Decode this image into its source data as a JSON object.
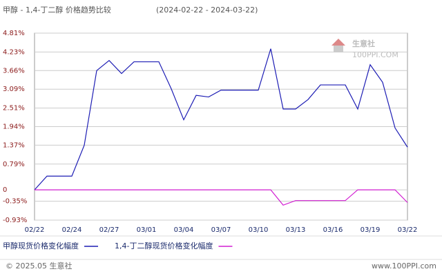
{
  "chart_data": {
    "type": "line",
    "title": "甲醇 - 1,4-丁二醇 价格趋势比较",
    "subtitle": "(2024-02-22 - 2024-03-22)",
    "categories": [
      "02/22",
      null,
      null,
      "02/24",
      null,
      null,
      "02/27",
      null,
      null,
      "03/01",
      null,
      null,
      "03/04",
      null,
      null,
      "03/07",
      null,
      null,
      "03/10",
      null,
      null,
      "03/13",
      null,
      null,
      "03/16",
      null,
      null,
      "03/19",
      null,
      null,
      "03/22"
    ],
    "series": [
      {
        "name": "甲醇现货价格变化幅度",
        "color": "#1c1cb4",
        "values": [
          0,
          0.42,
          0.42,
          0.42,
          1.37,
          3.66,
          3.97,
          3.57,
          3.93,
          3.93,
          3.93,
          3.1,
          2.15,
          2.9,
          2.85,
          3.06,
          3.06,
          3.06,
          3.06,
          4.33,
          2.48,
          2.48,
          2.77,
          3.22,
          3.22,
          3.22,
          2.48,
          3.84,
          3.3,
          1.9,
          1.31
        ]
      },
      {
        "name": "1,4-丁二醇现货价格变化幅度",
        "color": "#d21ed2",
        "values": [
          0,
          0,
          0,
          0,
          0,
          0,
          0,
          0,
          0,
          0,
          0,
          0,
          0,
          0,
          0,
          0,
          0,
          0,
          0,
          0,
          -0.47,
          -0.33,
          -0.33,
          -0.33,
          -0.33,
          -0.33,
          0,
          0,
          0,
          0,
          -0.39
        ]
      }
    ],
    "ylim": [
      -0.93,
      4.81
    ],
    "yticks": [
      {
        "value": 4.81,
        "label": "4.81%"
      },
      {
        "value": 4.23,
        "label": "4.23%"
      },
      {
        "value": 3.66,
        "label": "3.66%"
      },
      {
        "value": 3.09,
        "label": "3.09%"
      },
      {
        "value": 2.51,
        "label": "2.51%"
      },
      {
        "value": 1.94,
        "label": "1.94%"
      },
      {
        "value": 1.37,
        "label": "1.37%"
      },
      {
        "value": 0.79,
        "label": "0.79%"
      },
      0,
      {
        "value": -0.35,
        "label": "-0.35%"
      },
      {
        "value": -0.93,
        "label": "-0.93%"
      }
    ],
    "grid": true,
    "watermark": {
      "name": "生意社",
      "site": "100PPI.COM"
    },
    "footer": {
      "left": "© 2025.05 生意社",
      "right": "www.100PPI.com"
    }
  }
}
